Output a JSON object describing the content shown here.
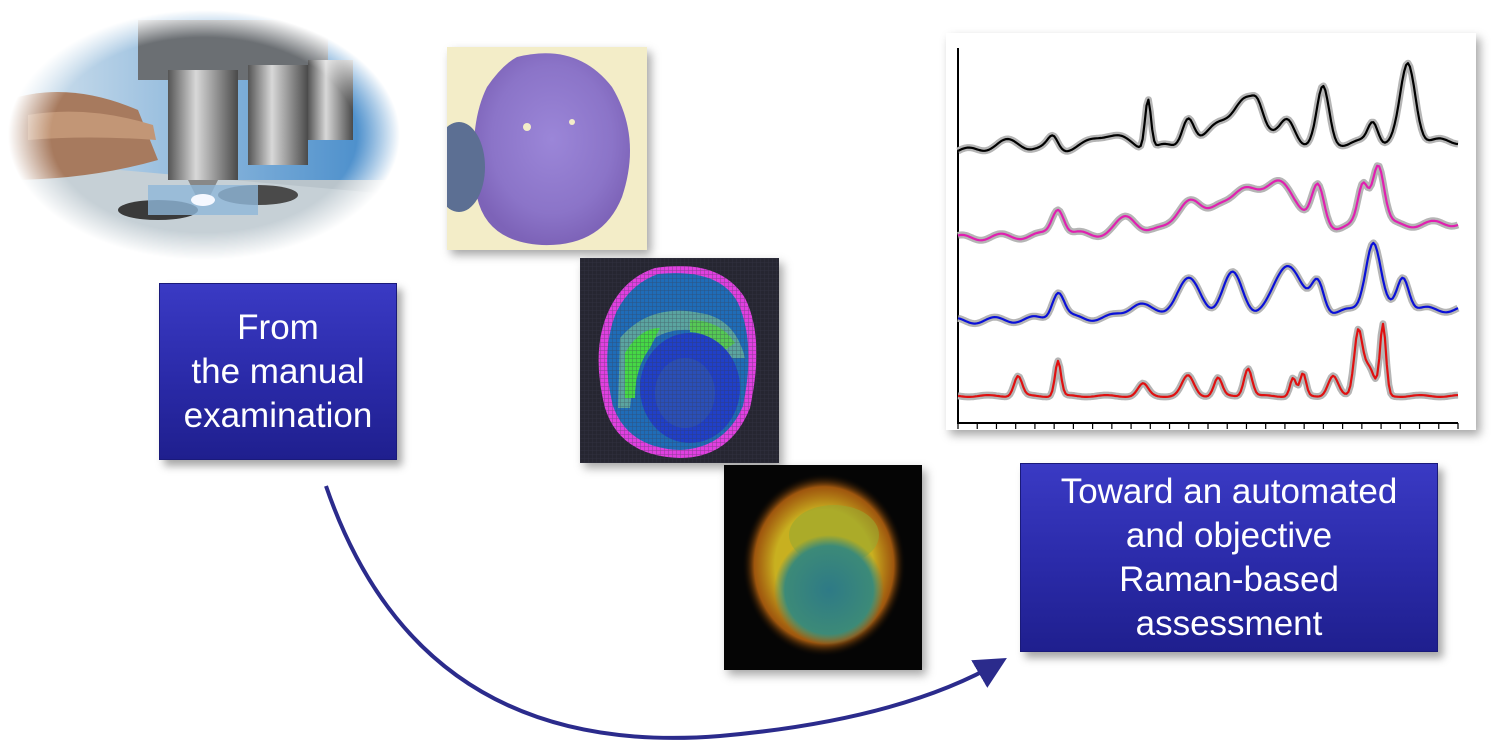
{
  "left_box": {
    "lines": [
      "From",
      "the manual",
      "examination"
    ]
  },
  "right_box": {
    "lines": [
      "Toward an automated",
      "and objective",
      "Raman-based",
      "assessment"
    ]
  },
  "images": {
    "microscope_photo": "microscope-photo",
    "stained_cell": "stained-cell-micrograph",
    "cluster_map": "raman-cluster-map",
    "fluorescence_image": "raman-intensity-image"
  },
  "colors": {
    "box_blue": "#2a2aa8",
    "arrow": "#2b2b8c",
    "spectrum_1": "#000000",
    "spectrum_2": "#e020b0",
    "spectrum_3": "#0a10d8",
    "spectrum_4": "#e01010",
    "band": "#b5b5b5"
  },
  "chart_data": {
    "type": "line",
    "title": "",
    "xlabel": "",
    "ylabel": "",
    "series": [
      {
        "color": "#000000"
      },
      {
        "color": "#e020b0"
      },
      {
        "color": "#0a10d8"
      },
      {
        "color": "#e01010"
      }
    ]
  }
}
